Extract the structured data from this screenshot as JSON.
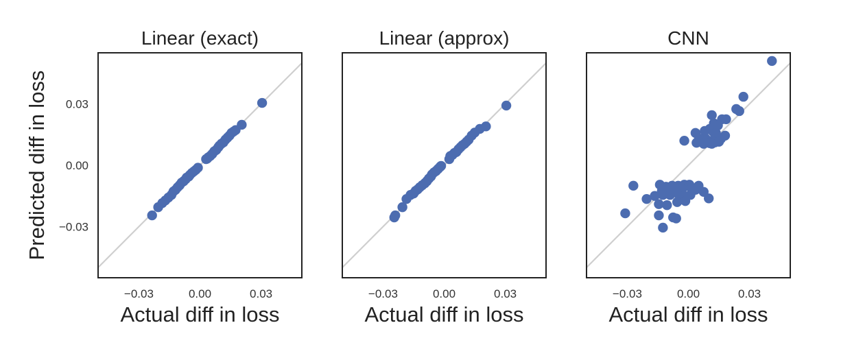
{
  "figure": {
    "ylabel": "Predicted diff in loss"
  },
  "chart_data": [
    {
      "type": "scatter",
      "title": "Linear (exact)",
      "xlabel": "Actual diff in loss",
      "ylabel": "Predicted diff in loss",
      "xlim": [
        -0.05,
        0.05
      ],
      "ylim": [
        -0.055,
        0.055
      ],
      "xticks": [
        -0.03,
        0.0,
        0.03
      ],
      "xtick_labels": [
        "−0.03",
        "0.00",
        "0.03"
      ],
      "yticks": [
        -0.03,
        0.0,
        0.03
      ],
      "ytick_labels": [
        "−0.03",
        "0.00",
        "0.03"
      ],
      "reference_line": "y = x",
      "grid": false,
      "marker_color": "#4C6CB0",
      "line_color": "#CFCFCF",
      "points": [
        [
          -0.0235,
          -0.0245
        ],
        [
          -0.0205,
          -0.0205
        ],
        [
          -0.0185,
          -0.0185
        ],
        [
          -0.017,
          -0.0172
        ],
        [
          -0.0155,
          -0.0158
        ],
        [
          -0.014,
          -0.0145
        ],
        [
          -0.013,
          -0.0128
        ],
        [
          -0.012,
          -0.012
        ],
        [
          -0.011,
          -0.0108
        ],
        [
          -0.01,
          -0.0098
        ],
        [
          -0.009,
          -0.0085
        ],
        [
          -0.008,
          -0.0078
        ],
        [
          -0.007,
          -0.0068
        ],
        [
          -0.0065,
          -0.006
        ],
        [
          -0.0055,
          -0.0055
        ],
        [
          -0.005,
          -0.0048
        ],
        [
          -0.004,
          -0.0038
        ],
        [
          -0.003,
          -0.003
        ],
        [
          -0.002,
          -0.0022
        ],
        [
          -0.001,
          -0.0012
        ],
        [
          0.003,
          0.003
        ],
        [
          0.0035,
          0.0032
        ],
        [
          0.004,
          0.0038
        ],
        [
          0.005,
          0.0045
        ],
        [
          0.006,
          0.0055
        ],
        [
          0.007,
          0.0068
        ],
        [
          0.008,
          0.0075
        ],
        [
          0.009,
          0.0088
        ],
        [
          0.0095,
          0.0095
        ],
        [
          0.0105,
          0.0105
        ],
        [
          0.0115,
          0.0112
        ],
        [
          0.0125,
          0.0125
        ],
        [
          0.0135,
          0.0135
        ],
        [
          0.0145,
          0.0145
        ],
        [
          0.0155,
          0.0158
        ],
        [
          0.0165,
          0.0165
        ],
        [
          0.0175,
          0.0172
        ],
        [
          0.0205,
          0.0198
        ],
        [
          0.0305,
          0.0305
        ]
      ]
    },
    {
      "type": "scatter",
      "title": "Linear (approx)",
      "xlabel": "Actual diff in loss",
      "ylabel": "",
      "xlim": [
        -0.05,
        0.05
      ],
      "ylim": [
        -0.055,
        0.055
      ],
      "xticks": [
        -0.03,
        0.0,
        0.03
      ],
      "xtick_labels": [
        "−0.03",
        "0.00",
        "0.03"
      ],
      "reference_line": "y = x",
      "grid": false,
      "marker_color": "#4C6CB0",
      "line_color": "#CFCFCF",
      "points": [
        [
          -0.0245,
          -0.0255
        ],
        [
          -0.024,
          -0.0245
        ],
        [
          -0.0205,
          -0.0205
        ],
        [
          -0.0185,
          -0.0165
        ],
        [
          -0.0165,
          -0.0145
        ],
        [
          -0.015,
          -0.0138
        ],
        [
          -0.014,
          -0.0125
        ],
        [
          -0.013,
          -0.0118
        ],
        [
          -0.012,
          -0.0108
        ],
        [
          -0.0108,
          -0.0098
        ],
        [
          -0.0095,
          -0.0088
        ],
        [
          -0.0085,
          -0.0078
        ],
        [
          -0.0075,
          -0.0065
        ],
        [
          -0.0065,
          -0.0055
        ],
        [
          -0.006,
          -0.0045
        ],
        [
          -0.005,
          -0.0035
        ],
        [
          -0.004,
          -0.0028
        ],
        [
          -0.003,
          -0.0018
        ],
        [
          -0.002,
          -0.0008
        ],
        [
          -0.0015,
          -0.0003
        ],
        [
          0.0025,
          0.003
        ],
        [
          0.003,
          0.0045
        ],
        [
          0.004,
          0.005
        ],
        [
          0.005,
          0.006
        ],
        [
          0.006,
          0.0065
        ],
        [
          0.007,
          0.0078
        ],
        [
          0.008,
          0.0088
        ],
        [
          0.009,
          0.0098
        ],
        [
          0.01,
          0.0105
        ],
        [
          0.011,
          0.0115
        ],
        [
          0.012,
          0.0125
        ],
        [
          0.0135,
          0.0145
        ],
        [
          0.015,
          0.016
        ],
        [
          0.0175,
          0.0178
        ],
        [
          0.0205,
          0.019
        ],
        [
          0.0305,
          0.0292
        ]
      ]
    },
    {
      "type": "scatter",
      "title": "CNN",
      "xlabel": "Actual diff in loss",
      "ylabel": "",
      "xlim": [
        -0.05,
        0.05
      ],
      "ylim": [
        -0.055,
        0.055
      ],
      "xticks": [
        -0.03,
        0.0,
        0.03
      ],
      "xtick_labels": [
        "−0.03",
        "0.00",
        "0.03"
      ],
      "reference_line": "y = x",
      "grid": false,
      "marker_color": "#4C6CB0",
      "line_color": "#CFCFCF",
      "points": [
        [
          0.041,
          0.051
        ],
        [
          0.027,
          0.0335
        ],
        [
          0.025,
          0.0265
        ],
        [
          0.0235,
          0.0275
        ],
        [
          0.0185,
          0.0225
        ],
        [
          0.0165,
          0.0225
        ],
        [
          0.0115,
          0.0245
        ],
        [
          0.0145,
          0.0195
        ],
        [
          0.0125,
          0.0205
        ],
        [
          0.0105,
          0.0178
        ],
        [
          0.008,
          0.0168
        ],
        [
          0.012,
          0.0165
        ],
        [
          0.0135,
          0.0158
        ],
        [
          0.018,
          0.0145
        ],
        [
          0.016,
          0.013
        ],
        [
          0.0135,
          0.012
        ],
        [
          0.0115,
          0.012
        ],
        [
          0.0085,
          0.013
        ],
        [
          0.0055,
          0.013
        ],
        [
          0.0035,
          0.0158
        ],
        [
          0.005,
          0.0122
        ],
        [
          0.0065,
          0.0115
        ],
        [
          0.0085,
          0.011
        ],
        [
          0.0105,
          0.0108
        ],
        [
          0.013,
          0.0112
        ],
        [
          0.015,
          0.0115
        ],
        [
          -0.002,
          0.012
        ],
        [
          0.004,
          0.011
        ],
        [
          0.0075,
          0.0105
        ],
        [
          0.0115,
          0.0105
        ],
        [
          -0.027,
          -0.01
        ],
        [
          -0.014,
          -0.0095
        ],
        [
          -0.011,
          -0.0105
        ],
        [
          -0.008,
          -0.01
        ],
        [
          -0.005,
          -0.01
        ],
        [
          -0.002,
          -0.0095
        ],
        [
          0.0005,
          -0.0095
        ],
        [
          0.005,
          -0.01
        ],
        [
          -0.013,
          -0.0125
        ],
        [
          -0.0095,
          -0.012
        ],
        [
          -0.006,
          -0.0115
        ],
        [
          -0.003,
          -0.0115
        ],
        [
          0.0015,
          -0.0115
        ],
        [
          0.0035,
          -0.012
        ],
        [
          0.0075,
          -0.013
        ],
        [
          -0.0205,
          -0.0165
        ],
        [
          -0.0165,
          -0.015
        ],
        [
          -0.0125,
          -0.0145
        ],
        [
          -0.009,
          -0.0145
        ],
        [
          -0.005,
          -0.014
        ],
        [
          -0.002,
          -0.015
        ],
        [
          0.001,
          -0.0145
        ],
        [
          0.01,
          -0.0162
        ],
        [
          -0.0145,
          -0.019
        ],
        [
          -0.0105,
          -0.0195
        ],
        [
          -0.0055,
          -0.018
        ],
        [
          -0.0015,
          -0.0175
        ],
        [
          -0.031,
          -0.0235
        ],
        [
          -0.0145,
          -0.0245
        ],
        [
          -0.0075,
          -0.0255
        ],
        [
          -0.006,
          -0.026
        ],
        [
          -0.0125,
          -0.0305
        ]
      ]
    }
  ]
}
